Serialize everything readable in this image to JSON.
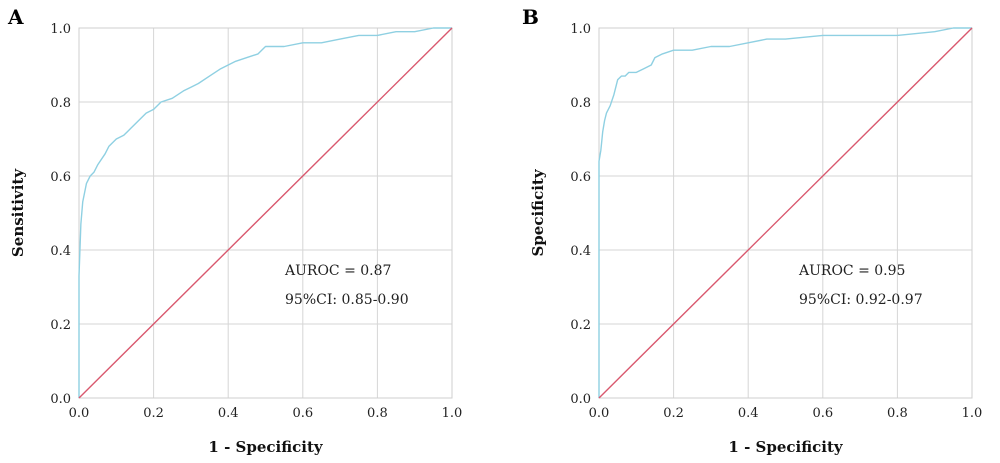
{
  "chart_data": [
    {
      "type": "line",
      "panel_label": "A",
      "xlabel": "1 - Specificity",
      "ylabel": "Sensitivity",
      "xlim": [
        0,
        1
      ],
      "ylim": [
        0,
        1
      ],
      "xticks": [
        "0.0",
        "0.2",
        "0.4",
        "0.6",
        "0.8",
        "1.0"
      ],
      "yticks": [
        "0.0",
        "0.2",
        "0.4",
        "0.6",
        "0.8",
        "1.0"
      ],
      "grid": true,
      "annotations": [
        "AUROC = 0.87",
        "95%CI: 0.85-0.90"
      ],
      "series": [
        {
          "color": "#8fd0e2",
          "x": [
            0,
            0,
            0.005,
            0.01,
            0.02,
            0.03,
            0.04,
            0.05,
            0.07,
            0.08,
            0.1,
            0.12,
            0.14,
            0.16,
            0.18,
            0.2,
            0.22,
            0.25,
            0.28,
            0.3,
            0.32,
            0.35,
            0.38,
            0.4,
            0.42,
            0.45,
            0.48,
            0.5,
            0.55,
            0.6,
            0.65,
            0.7,
            0.75,
            0.8,
            0.85,
            0.9,
            0.95,
            1.0
          ],
          "y": [
            0,
            0.33,
            0.47,
            0.53,
            0.58,
            0.6,
            0.61,
            0.63,
            0.66,
            0.68,
            0.7,
            0.71,
            0.73,
            0.75,
            0.77,
            0.78,
            0.8,
            0.81,
            0.83,
            0.84,
            0.85,
            0.87,
            0.89,
            0.9,
            0.91,
            0.92,
            0.93,
            0.95,
            0.95,
            0.96,
            0.96,
            0.97,
            0.98,
            0.98,
            0.99,
            0.99,
            1.0,
            1.0
          ]
        },
        {
          "color": "#d9586e",
          "x": [
            0,
            1
          ],
          "y": [
            0,
            1
          ]
        }
      ]
    },
    {
      "type": "line",
      "panel_label": "B",
      "xlabel": "1 - Specificity",
      "ylabel": "Specificity",
      "xlim": [
        0,
        1
      ],
      "ylim": [
        0,
        1
      ],
      "xticks": [
        "0.0",
        "0.2",
        "0.4",
        "0.6",
        "0.8",
        "1.0"
      ],
      "yticks": [
        "0.0",
        "0.2",
        "0.4",
        "0.6",
        "0.8",
        "1.0"
      ],
      "grid": true,
      "annotations": [
        "AUROC = 0.95",
        "95%CI: 0.92-0.97"
      ],
      "series": [
        {
          "color": "#8fd0e2",
          "x": [
            0,
            0,
            0.005,
            0.01,
            0.015,
            0.02,
            0.03,
            0.04,
            0.05,
            0.06,
            0.07,
            0.08,
            0.1,
            0.12,
            0.14,
            0.15,
            0.17,
            0.2,
            0.25,
            0.3,
            0.35,
            0.4,
            0.45,
            0.5,
            0.6,
            0.7,
            0.8,
            0.9,
            0.95,
            1.0
          ],
          "y": [
            0,
            0.64,
            0.67,
            0.72,
            0.75,
            0.77,
            0.79,
            0.82,
            0.86,
            0.87,
            0.87,
            0.88,
            0.88,
            0.89,
            0.9,
            0.92,
            0.93,
            0.94,
            0.94,
            0.95,
            0.95,
            0.96,
            0.97,
            0.97,
            0.98,
            0.98,
            0.98,
            0.99,
            1.0,
            1.0
          ]
        },
        {
          "color": "#d9586e",
          "x": [
            0,
            1
          ],
          "y": [
            0,
            1
          ]
        }
      ]
    }
  ]
}
